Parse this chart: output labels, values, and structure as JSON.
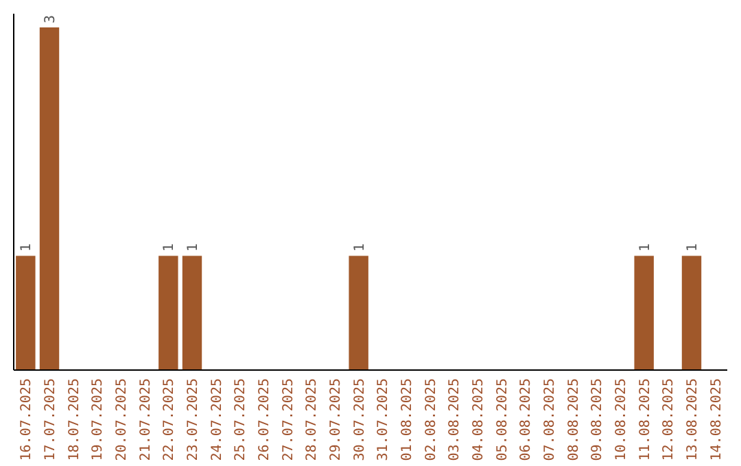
{
  "chart_data": {
    "type": "bar",
    "categories": [
      "16.07.2025",
      "17.07.2025",
      "18.07.2025",
      "19.07.2025",
      "20.07.2025",
      "21.07.2025",
      "22.07.2025",
      "23.07.2025",
      "24.07.2025",
      "25.07.2025",
      "26.07.2025",
      "27.07.2025",
      "28.07.2025",
      "29.07.2025",
      "30.07.2025",
      "31.07.2025",
      "01.08.2025",
      "02.08.2025",
      "03.08.2025",
      "04.08.2025",
      "05.08.2025",
      "06.08.2025",
      "07.08.2025",
      "08.08.2025",
      "09.08.2025",
      "10.08.2025",
      "11.08.2025",
      "12.08.2025",
      "13.08.2025",
      "14.08.2025"
    ],
    "values": [
      1,
      3,
      0,
      0,
      0,
      0,
      1,
      1,
      0,
      0,
      0,
      0,
      0,
      0,
      1,
      0,
      0,
      0,
      0,
      0,
      0,
      0,
      0,
      0,
      0,
      0,
      1,
      0,
      1,
      0
    ],
    "value_labels": [
      "1",
      "3",
      null,
      null,
      null,
      null,
      "1",
      "1",
      null,
      null,
      null,
      null,
      null,
      null,
      "1",
      null,
      null,
      null,
      null,
      null,
      null,
      null,
      null,
      null,
      null,
      null,
      "1",
      null,
      "1",
      null
    ],
    "color": "#a0582a"
  }
}
